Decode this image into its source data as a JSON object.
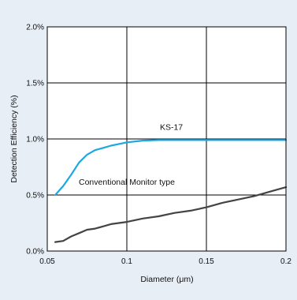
{
  "chart_data": {
    "type": "line",
    "title": "",
    "xlabel": "Diameter (μm)",
    "ylabel": "Detection Efficiency (%)",
    "xlim": [
      0.05,
      0.2
    ],
    "ylim": [
      0,
      2.0
    ],
    "x_ticks": [
      0.05,
      0.1,
      0.15,
      0.2
    ],
    "x_tick_labels": [
      "0.05",
      "0.1",
      "0.15",
      "0.2"
    ],
    "y_ticks": [
      0,
      0.5,
      1.0,
      1.5,
      2.0
    ],
    "y_tick_labels": [
      "0.0%",
      "0.5%",
      "1.0%",
      "1.5%",
      "2.0%"
    ],
    "grid": true,
    "legend": "none",
    "colors": {
      "background": "#e7eef6",
      "plot_area": "#ffffff",
      "grid": "#000000"
    },
    "series": [
      {
        "name": "KS-17",
        "color": "#1ea7e0",
        "x": [
          0.055,
          0.06,
          0.065,
          0.07,
          0.075,
          0.08,
          0.085,
          0.09,
          0.095,
          0.1,
          0.11,
          0.12,
          0.13,
          0.14,
          0.15,
          0.16,
          0.17,
          0.18,
          0.19,
          0.2
        ],
        "y": [
          0.5,
          0.58,
          0.68,
          0.79,
          0.86,
          0.9,
          0.92,
          0.94,
          0.955,
          0.97,
          0.985,
          0.99,
          0.99,
          0.99,
          0.99,
          0.99,
          0.99,
          0.99,
          0.99,
          0.99
        ]
      },
      {
        "name": "Conventional Monitor type",
        "color": "#444444",
        "x": [
          0.055,
          0.06,
          0.065,
          0.07,
          0.075,
          0.08,
          0.085,
          0.09,
          0.095,
          0.1,
          0.11,
          0.12,
          0.13,
          0.14,
          0.15,
          0.16,
          0.17,
          0.18,
          0.19,
          0.2
        ],
        "y": [
          0.08,
          0.09,
          0.13,
          0.16,
          0.19,
          0.2,
          0.22,
          0.24,
          0.25,
          0.26,
          0.29,
          0.31,
          0.34,
          0.36,
          0.39,
          0.43,
          0.46,
          0.49,
          0.53,
          0.57
        ]
      }
    ],
    "annotations": [
      {
        "text": "KS-17",
        "x": 0.128,
        "y": 1.08
      },
      {
        "text": "Conventional Monitor type",
        "x": 0.1,
        "y": 0.59
      }
    ]
  }
}
